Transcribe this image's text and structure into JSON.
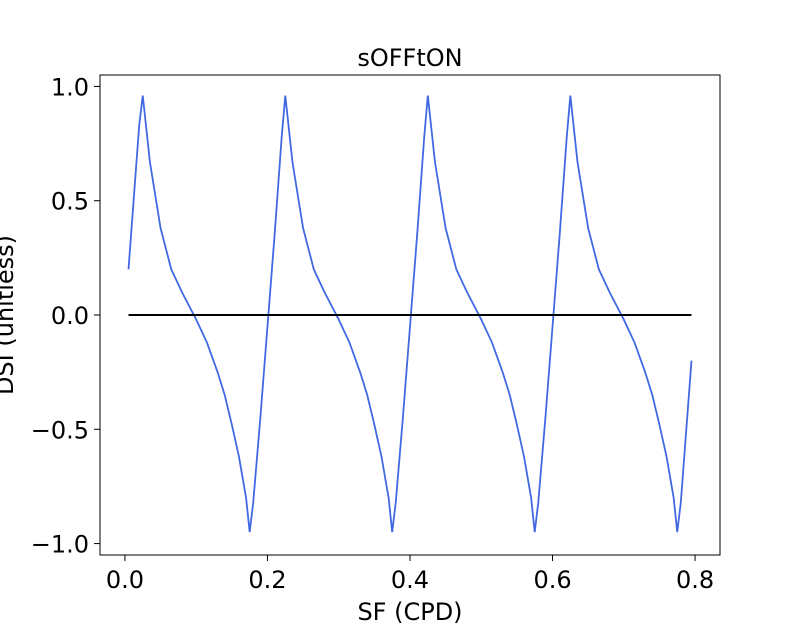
{
  "chart_data": {
    "type": "line",
    "title": "sOFFtON",
    "xlabel": "SF (CPD)",
    "ylabel": "DSI (unitless)",
    "xlim": [
      -0.035,
      0.835
    ],
    "ylim": [
      -1.05,
      1.05
    ],
    "xticks": [
      0.0,
      0.2,
      0.4,
      0.6,
      0.8
    ],
    "xtick_labels": [
      "0.0",
      "0.2",
      "0.4",
      "0.6",
      "0.8"
    ],
    "yticks": [
      -1.0,
      -0.5,
      0.0,
      0.5,
      1.0
    ],
    "ytick_labels": [
      "−1.0",
      "−0.5",
      "0.0",
      "0.5",
      "1.0"
    ],
    "grid": false,
    "series": [
      {
        "color": "#4169e1",
        "x": [
          0.005,
          0.02,
          0.025,
          0.035,
          0.05,
          0.065,
          0.08,
          0.1,
          0.115,
          0.13,
          0.14,
          0.15,
          0.16,
          0.17,
          0.175,
          0.18,
          0.19,
          0.2,
          0.21,
          0.22,
          0.225,
          0.235,
          0.25,
          0.265,
          0.28,
          0.3,
          0.315,
          0.33,
          0.34,
          0.35,
          0.36,
          0.37,
          0.375,
          0.38,
          0.39,
          0.4,
          0.41,
          0.42,
          0.425,
          0.435,
          0.45,
          0.465,
          0.48,
          0.5,
          0.515,
          0.53,
          0.54,
          0.55,
          0.56,
          0.57,
          0.575,
          0.58,
          0.59,
          0.6,
          0.61,
          0.62,
          0.625,
          0.635,
          0.65,
          0.665,
          0.68,
          0.7,
          0.715,
          0.73,
          0.74,
          0.75,
          0.76,
          0.77,
          0.775,
          0.78,
          0.795
        ],
        "y": [
          0.2,
          0.83,
          0.96,
          0.67,
          0.38,
          0.2,
          0.1,
          -0.02,
          -0.12,
          -0.25,
          -0.35,
          -0.48,
          -0.62,
          -0.8,
          -0.95,
          -0.82,
          -0.45,
          -0.05,
          0.35,
          0.78,
          0.96,
          0.67,
          0.38,
          0.2,
          0.1,
          -0.02,
          -0.12,
          -0.25,
          -0.35,
          -0.48,
          -0.62,
          -0.8,
          -0.95,
          -0.82,
          -0.45,
          -0.05,
          0.35,
          0.78,
          0.96,
          0.67,
          0.38,
          0.2,
          0.1,
          -0.02,
          -0.12,
          -0.25,
          -0.35,
          -0.48,
          -0.62,
          -0.8,
          -0.95,
          -0.82,
          -0.45,
          -0.05,
          0.35,
          0.78,
          0.96,
          0.67,
          0.38,
          0.2,
          0.1,
          -0.02,
          -0.12,
          -0.25,
          -0.35,
          -0.48,
          -0.62,
          -0.8,
          -0.95,
          -0.82,
          -0.2
        ]
      },
      {
        "color": "#000000",
        "x": [
          0.005,
          0.795
        ],
        "y": [
          0.0,
          0.0
        ]
      }
    ]
  }
}
